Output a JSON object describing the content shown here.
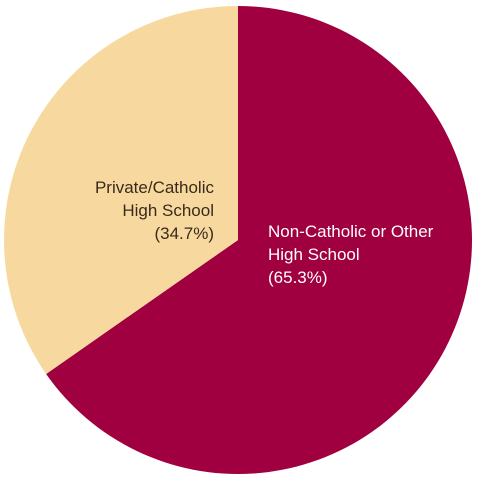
{
  "chart_data": {
    "type": "pie",
    "title": "",
    "slices": [
      {
        "label_lines": [
          "Non-Catholic or Other",
          "High School",
          "(65.3%)"
        ],
        "label": "Non-Catholic or Other High School",
        "value": 65.3,
        "color": "#a0003f",
        "label_color": "#ffffff"
      },
      {
        "label_lines": [
          "Private/Catholic",
          "High School",
          "(34.7%)"
        ],
        "label": "Private/Catholic High School",
        "value": 34.7,
        "color": "#f7d9a0",
        "label_color": "#3a2a1a"
      }
    ],
    "start": "12 o'clock",
    "direction": "clockwise",
    "legend": "none"
  }
}
